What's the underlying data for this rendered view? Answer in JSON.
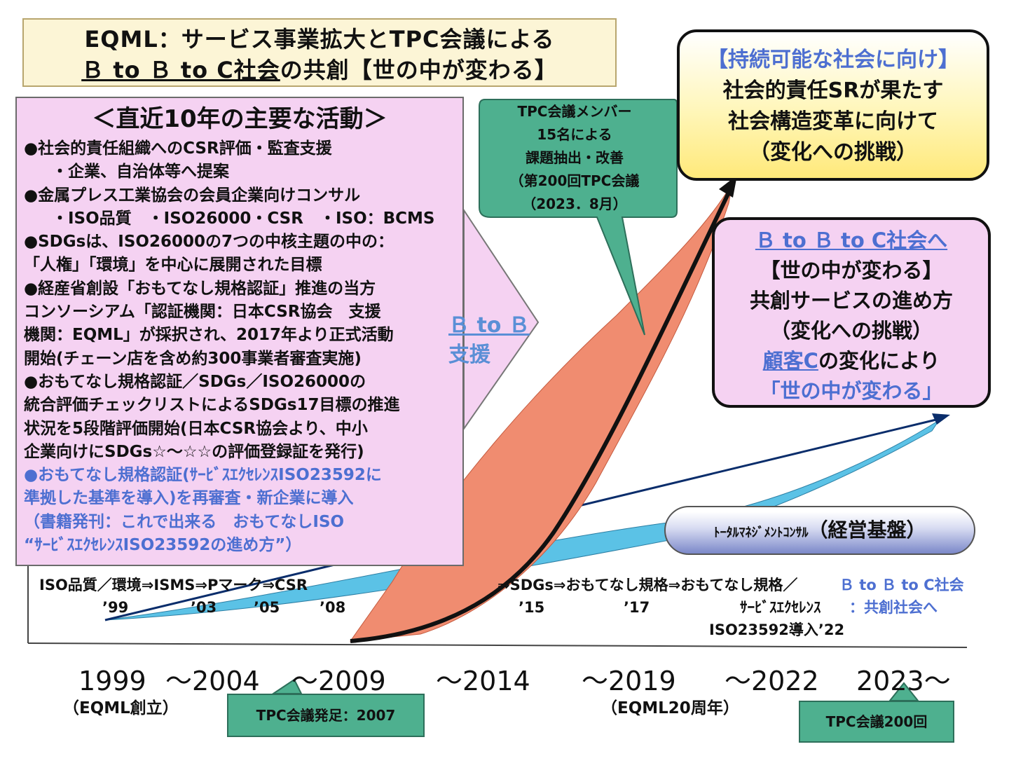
{
  "title": {
    "line1": "EQML：サービス事業拡大とTPC会議による",
    "line2_underlined": "Ｂ to Ｂ to C社会",
    "line2_rest": "の共創【世の中が変わる】"
  },
  "activities": {
    "heading": "＜直近10年の主要な活動＞",
    "lines": [
      "●社会的責任組織へのCSR評価・監査支援",
      "・企業、自治体等へ提案",
      "●金属プレス工業協会の会員企業向けコンサル",
      "・ISO品質　・ISO26000・CSR　・ISO：BCMS",
      "●SDGsは、ISO26000の7つの中核主題の中の：",
      "「人権」「環境」を中心に展開された目標",
      "●経産省創設「おもてなし規格認証」推進の当方",
      "コンソーシアム「認証機関：日本CSR協会　支援",
      "機関：EQML」が採択され、2017年より正式活動",
      "開始(チェーン店を含め約300事業者審査実施)",
      "●おもてなし規格認証／SDGs／ISO26000の",
      "統合評価チェックリストによるSDGs17目標の推進",
      "状況を5段階評価開始(日本CSR協会より、中小",
      "企業向けにSDGs☆～☆☆の評価登録証を発行)",
      "●おもてなし規格認証(ｻｰﾋﾞｽｴｸｾﾚﾝｽISO23592に",
      "準拠した基準を導入)を再審査・新企業に導入",
      "（書籍発刊：これで出来る　おもてなしISO",
      "“ｻｰﾋﾞｽｴｸｾﾚﾝｽISO23592の進め方”）"
    ]
  },
  "btob_label": {
    "line1": "Ｂ to Ｂ",
    "line2": "支援"
  },
  "tpc_callout": {
    "lines": [
      "TPC会議メンバー",
      "15名による",
      "課題抽出・改善",
      "（第200回TPC会議",
      "（2023．8月）"
    ]
  },
  "goal_box": {
    "line1": "【持続可能な社会に向け】",
    "line2": "社会的責任SRが果たす",
    "line3": "社会構造変革に向けて",
    "line4": "（変化への挑戦）"
  },
  "b2c_box": {
    "line1": "Ｂ to Ｂ to C社会へ",
    "line2": "【世の中が変わる】",
    "line3": "共創サービスの進め方",
    "line4": "（変化への挑戦）",
    "line5_hl": "顧客C",
    "line5_rest": "の変化により",
    "line6": "「世の中が変わる」"
  },
  "total_mgmt": {
    "small": "ﾄｰﾀﾙﾏﾈｼﾞﾒﾝﾄｺﾝｻﾙ",
    "big": "（経営基盤）"
  },
  "milestones": {
    "row1_left": "ISO品質／環境⇒ISMS⇒Pマーク⇒CSR",
    "row1_mid": "⇒SDGs⇒おもてなし規格⇒おもてなし規格／",
    "row1_right": "Ｂ to Ｂ to C社会",
    "y99": "’99",
    "y03": "’03",
    "y05": "’05",
    "y08": "’08",
    "y15": "’15",
    "y17": "’17",
    "service_ex": "ｻｰﾋﾞｽｴｸｾﾚﾝｽ",
    "kyoso": "：共創社会へ",
    "iso23592": "ISO23592導入’22"
  },
  "timeline": {
    "y1999": "1999",
    "y2004": "～2004",
    "y2009": "～2009",
    "y2014": "～2014",
    "y2019": "～2019",
    "y2022": "～2022",
    "y2023": "2023～",
    "eqml_founded": "（EQML創立）",
    "eqml_20th": "（EQML20周年）"
  },
  "tags": {
    "tpc_start": "TPC会議発足：2007",
    "tpc_200": "TPC会議200回"
  },
  "colors": {
    "pink_box": "#f5d2f2",
    "salmon_area": "#f08c70",
    "cyan_area": "#5bc2e6",
    "teal_callout": "#4eb08f",
    "highlight_blue": "#4d6fd1"
  }
}
